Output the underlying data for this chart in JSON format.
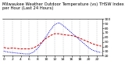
{
  "title": "Milwaukee Weather Outdoor Temperature (vs) THSW Index per Hour (Last 24 Hours)",
  "hours": [
    0,
    1,
    2,
    3,
    4,
    5,
    6,
    7,
    8,
    9,
    10,
    11,
    12,
    13,
    14,
    15,
    16,
    17,
    18,
    19,
    20,
    21,
    22,
    23
  ],
  "temp": [
    38,
    36,
    37,
    36,
    35,
    35,
    35,
    37,
    42,
    50,
    58,
    64,
    68,
    68,
    66,
    65,
    64,
    62,
    58,
    54,
    50,
    46,
    43,
    41
  ],
  "thsw": [
    30,
    28,
    27,
    26,
    25,
    24,
    24,
    28,
    36,
    48,
    62,
    76,
    88,
    92,
    86,
    78,
    70,
    62,
    54,
    46,
    38,
    32,
    29,
    27
  ],
  "temp_color": "#cc0000",
  "thsw_color": "#0000cc",
  "background_color": "#ffffff",
  "grid_color": "#888888",
  "ylim": [
    20,
    100
  ],
  "ytick_values": [
    20,
    30,
    40,
    50,
    60,
    70,
    80,
    90,
    100
  ],
  "ytick_labels": [
    "20",
    "30",
    "40",
    "50",
    "60",
    "70",
    "80",
    "90",
    "100"
  ],
  "xtick_positions": [
    0,
    2,
    4,
    6,
    8,
    10,
    12,
    14,
    16,
    18,
    20,
    22
  ],
  "xtick_labels": [
    "0",
    "2",
    "4",
    "6",
    "8",
    "10",
    "12",
    "14",
    "16",
    "18",
    "20",
    "22"
  ],
  "title_fontsize": 3.8,
  "tick_fontsize": 3.2,
  "line_width": 0.7
}
